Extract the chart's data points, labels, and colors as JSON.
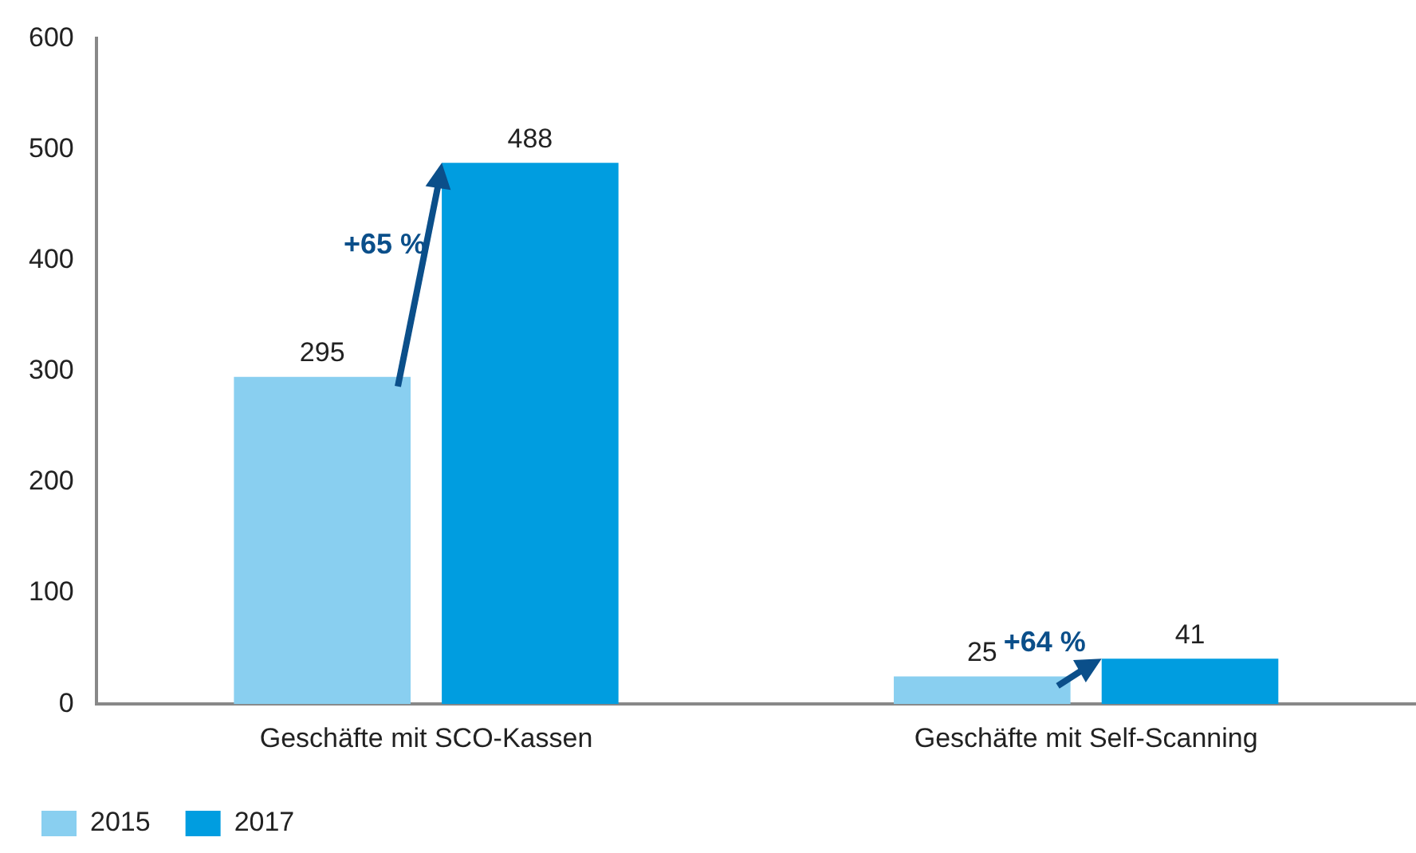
{
  "chart_data": {
    "type": "bar",
    "categories": [
      "Geschäfte mit SCO-Kassen",
      "Geschäfte mit Self-Scanning"
    ],
    "series": [
      {
        "name": "2015",
        "color": "#89cff0",
        "values": [
          295,
          25
        ]
      },
      {
        "name": "2017",
        "color": "#009de0",
        "values": [
          488,
          41
        ]
      }
    ],
    "ylim": [
      0,
      600
    ],
    "yticks": [
      0,
      100,
      200,
      300,
      400,
      500,
      600
    ],
    "grid": false,
    "legend": "bottom left",
    "data_labels": true,
    "annotations": [
      "+65 %",
      "+64 %"
    ]
  }
}
